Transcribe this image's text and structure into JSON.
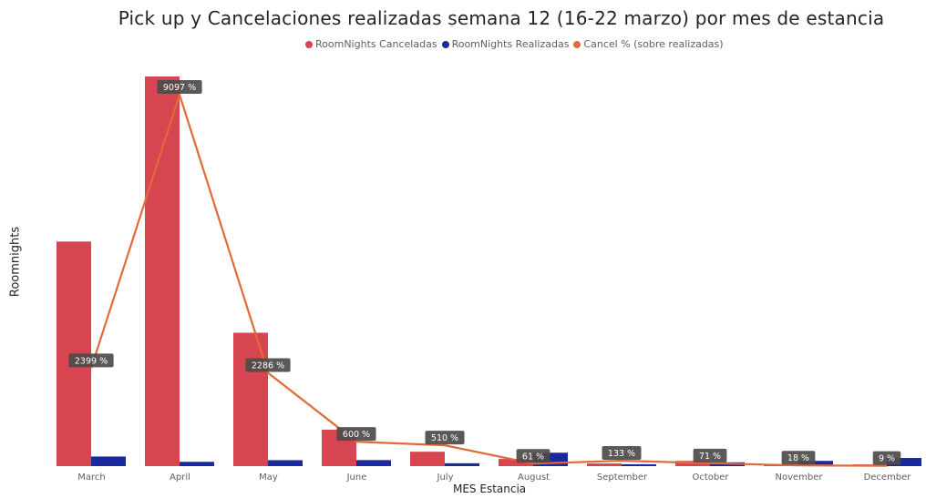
{
  "chart_data": {
    "type": "bar",
    "title": "Pick up y Cancelaciones realizadas semana 12 (16-22 marzo) por mes de estancia",
    "xlabel": "MES Estancia",
    "ylabel": "Roomnights",
    "categories": [
      "March",
      "April",
      "May",
      "June",
      "July",
      "August",
      "September",
      "October",
      "November",
      "December"
    ],
    "series": [
      {
        "name": "RoomNights Canceladas",
        "type": "bar",
        "color": "#d64550",
        "values": [
          2340,
          4060,
          1390,
          380,
          150,
          75,
          28,
          55,
          12,
          18
        ]
      },
      {
        "name": "RoomNights Realizadas",
        "type": "bar",
        "color": "#1a2a9e",
        "values": [
          100,
          45,
          62,
          63,
          30,
          140,
          20,
          40,
          55,
          85
        ]
      },
      {
        "name": "Cancel % (sobre realizadas)",
        "type": "line",
        "color": "#e06a38",
        "values": [
          2399,
          9097,
          2286,
          600,
          510,
          61,
          133,
          71,
          18,
          9
        ],
        "labels": [
          "2399 %",
          "9097 %",
          "2286 %",
          "600 %",
          "510 %",
          "61 %",
          "133 %",
          "71 %",
          "18 %",
          "9 %"
        ]
      }
    ],
    "legend_position": "top-center",
    "grid": false
  }
}
